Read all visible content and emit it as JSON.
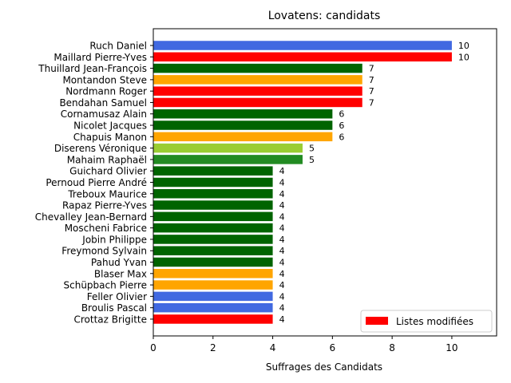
{
  "chart_data": {
    "type": "bar",
    "orientation": "horizontal",
    "title": "Lovatens: candidats",
    "xlabel": "Suffrages des Candidats",
    "ylabel": "",
    "xlim": [
      0,
      11.5
    ],
    "xticks": [
      0,
      2,
      4,
      6,
      8,
      10
    ],
    "grid": false,
    "legend": {
      "position": "bottom-right",
      "entries": [
        {
          "label": "Listes modifiées",
          "color": "#ff0000"
        }
      ]
    },
    "categories": [
      "Ruch Daniel",
      "Maillard Pierre-Yves",
      "Thuillard Jean-François",
      "Montandon Steve",
      "Nordmann Roger",
      "Bendahan Samuel",
      "Cornamusaz Alain",
      "Nicolet Jacques",
      "Chapuis Manon",
      "Diserens Véronique",
      "Mahaim Raphaël",
      "Guichard Olivier",
      "Pernoud Pierre André",
      "Treboux Maurice",
      "Rapaz Pierre-Yves",
      "Chevalley Jean-Bernard",
      "Moscheni Fabrice",
      "Jobin Philippe",
      "Freymond Sylvain",
      "Pahud Yvan",
      "Blaser Max",
      "Schüpbach Pierre",
      "Feller Olivier",
      "Broulis Pascal",
      "Crottaz Brigitte"
    ],
    "values": [
      10,
      10,
      7,
      7,
      7,
      7,
      6,
      6,
      6,
      5,
      5,
      4,
      4,
      4,
      4,
      4,
      4,
      4,
      4,
      4,
      4,
      4,
      4,
      4,
      4
    ],
    "colors": [
      "#4169e1",
      "#ff0000",
      "#006400",
      "#ffa500",
      "#ff0000",
      "#ff0000",
      "#006400",
      "#006400",
      "#ffa500",
      "#9acd32",
      "#228b22",
      "#006400",
      "#006400",
      "#006400",
      "#006400",
      "#006400",
      "#006400",
      "#006400",
      "#006400",
      "#006400",
      "#ffa500",
      "#ffa500",
      "#4169e1",
      "#4169e1",
      "#ff0000"
    ]
  }
}
